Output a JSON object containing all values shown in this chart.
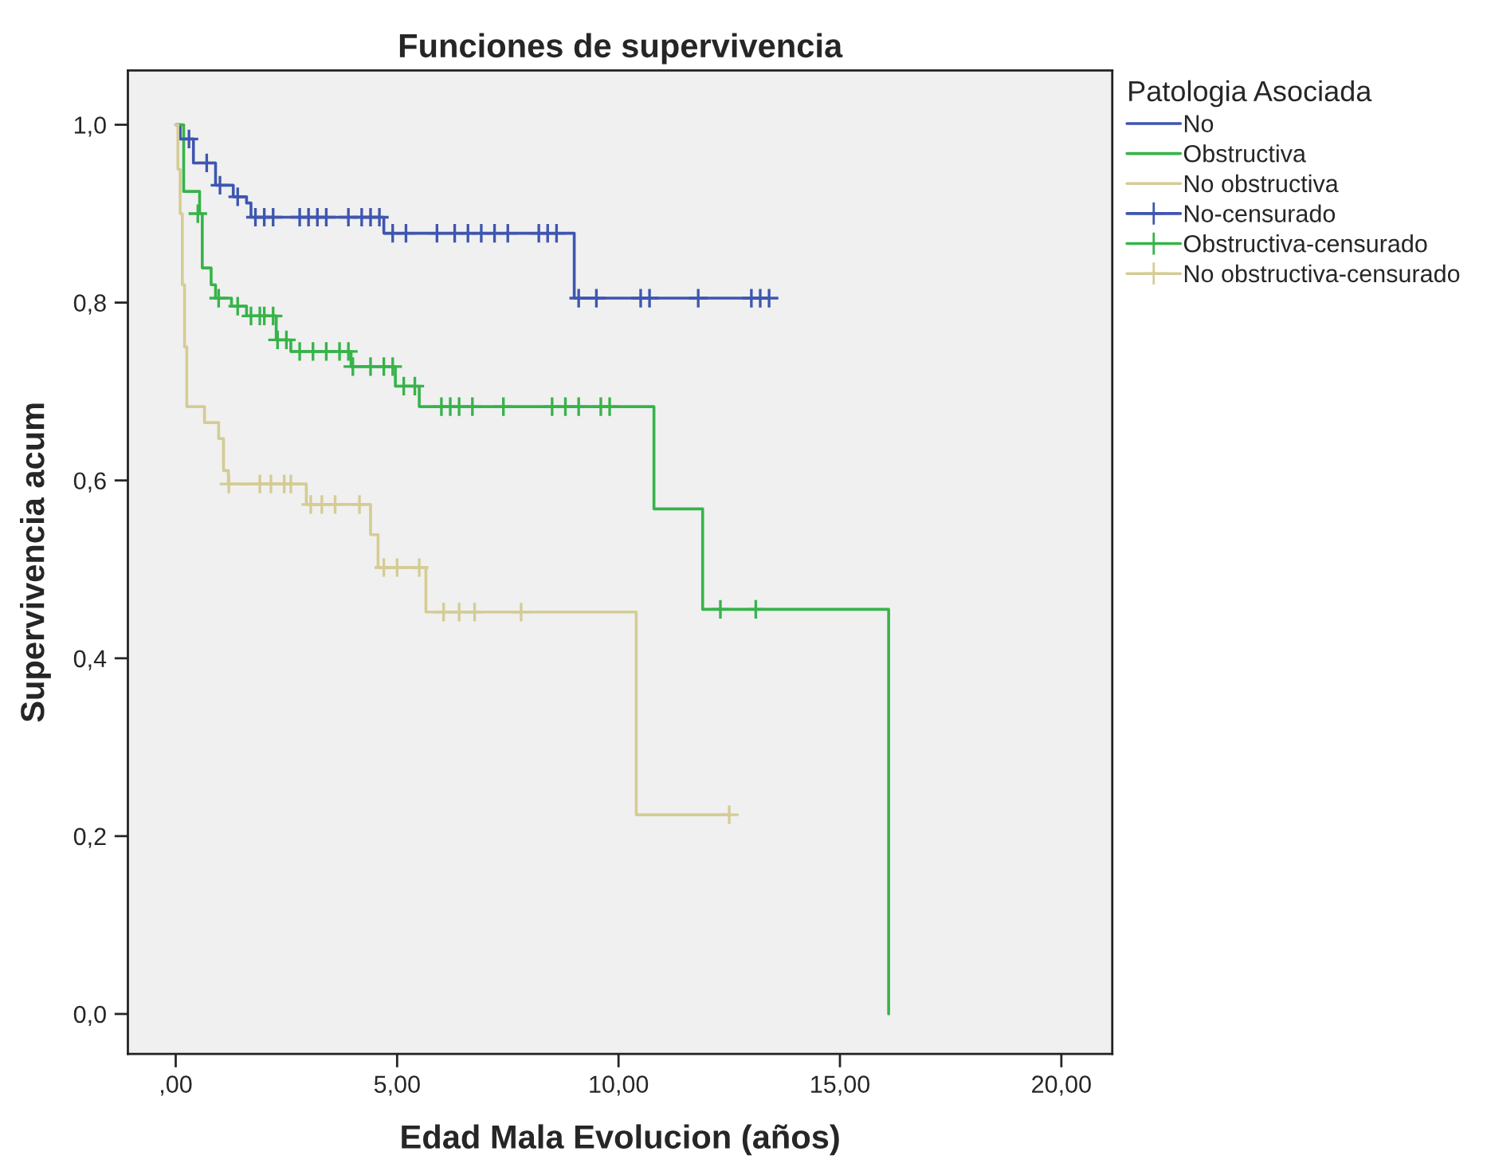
{
  "chart_data": {
    "type": "step",
    "title": "Funciones de supervivencia",
    "xlabel": "Edad Mala Evolucion (años)",
    "ylabel": "Supervivencia acum",
    "legend_title": "Patologia Asociada",
    "legend": "top right",
    "grid": false,
    "xlim": [
      -1.08,
      21.15
    ],
    "ylim": [
      -0.045,
      1.061
    ],
    "xticks": [
      {
        "value": 0,
        "label": ",00"
      },
      {
        "value": 5,
        "label": "5,00"
      },
      {
        "value": 10,
        "label": "10,00"
      },
      {
        "value": 15,
        "label": "15,00"
      },
      {
        "value": 20,
        "label": "20,00"
      }
    ],
    "yticks": [
      {
        "value": 0,
        "label": "0,0"
      },
      {
        "value": 0.2,
        "label": "0,2"
      },
      {
        "value": 0.4,
        "label": "0,4"
      },
      {
        "value": 0.6,
        "label": "0,6"
      },
      {
        "value": 0.8,
        "label": "0,8"
      },
      {
        "value": 1.0,
        "label": "1,0"
      }
    ],
    "series": [
      {
        "name": "No",
        "color": "#3e56b0",
        "x": [
          0,
          0.1,
          0.4,
          0.9,
          1.3,
          1.6,
          1.7,
          4.7,
          9.0,
          13.4
        ],
        "values": [
          1.0,
          0.984,
          0.957,
          0.932,
          0.919,
          0.912,
          0.896,
          0.878,
          0.805,
          0.805
        ]
      },
      {
        "name": "Obstructiva",
        "color": "#37b34a",
        "x": [
          0,
          0.18,
          0.54,
          0.6,
          0.8,
          0.9,
          1.26,
          1.6,
          2.27,
          2.6,
          3.96,
          4.96,
          5.5,
          10.8,
          11.9,
          16.1,
          16.1
        ],
        "values": [
          1.0,
          0.925,
          0.9,
          0.839,
          0.82,
          0.805,
          0.796,
          0.785,
          0.758,
          0.745,
          0.728,
          0.706,
          0.683,
          0.568,
          0.455,
          0.455,
          0
        ]
      },
      {
        "name": "No obstructiva",
        "color": "#d4cc94",
        "x": [
          0,
          0.05,
          0.1,
          0.15,
          0.2,
          0.25,
          0.65,
          0.97,
          1.08,
          1.19,
          2.95,
          4.4,
          4.57,
          5.65,
          10.4,
          12.5
        ],
        "values": [
          1.0,
          0.95,
          0.9,
          0.82,
          0.75,
          0.683,
          0.665,
          0.647,
          0.611,
          0.596,
          0.573,
          0.539,
          0.502,
          0.452,
          0.224,
          0.224
        ]
      },
      {
        "name": "No-censurado",
        "type": "scatter",
        "marker": "cross",
        "color": "#3e56b0",
        "x": [
          0.3,
          0.7,
          1.0,
          1.4,
          1.8,
          2.0,
          2.2,
          2.8,
          3.0,
          3.2,
          3.4,
          3.9,
          4.2,
          4.4,
          4.6,
          4.9,
          5.2,
          5.9,
          6.3,
          6.6,
          6.9,
          7.2,
          7.5,
          8.2,
          8.4,
          8.6,
          9.1,
          9.5,
          10.5,
          10.7,
          11.8,
          13.0,
          13.2,
          13.4
        ],
        "values": [
          0.984,
          0.957,
          0.932,
          0.919,
          0.896,
          0.896,
          0.896,
          0.896,
          0.896,
          0.896,
          0.896,
          0.896,
          0.896,
          0.896,
          0.896,
          0.878,
          0.878,
          0.878,
          0.878,
          0.878,
          0.878,
          0.878,
          0.878,
          0.878,
          0.878,
          0.878,
          0.805,
          0.805,
          0.805,
          0.805,
          0.805,
          0.805,
          0.805,
          0.805
        ]
      },
      {
        "name": "Obstructiva-censurado",
        "type": "scatter",
        "marker": "cross",
        "color": "#37b34a",
        "x": [
          0.5,
          0.97,
          1.4,
          1.7,
          1.9,
          2.0,
          2.2,
          2.3,
          2.5,
          2.8,
          3.1,
          3.4,
          3.7,
          3.9,
          4.0,
          4.4,
          4.7,
          4.9,
          5.15,
          5.4,
          6.0,
          6.2,
          6.4,
          6.7,
          7.4,
          8.5,
          8.8,
          9.1,
          9.6,
          9.8,
          12.3,
          13.1
        ],
        "values": [
          0.9,
          0.805,
          0.796,
          0.785,
          0.785,
          0.785,
          0.785,
          0.758,
          0.758,
          0.745,
          0.745,
          0.745,
          0.745,
          0.745,
          0.728,
          0.728,
          0.728,
          0.728,
          0.706,
          0.706,
          0.683,
          0.683,
          0.683,
          0.683,
          0.683,
          0.683,
          0.683,
          0.683,
          0.683,
          0.683,
          0.455,
          0.455
        ]
      },
      {
        "name": "No obstructiva-censurado",
        "type": "scatter",
        "marker": "cross",
        "color": "#d4cc94",
        "x": [
          1.2,
          1.9,
          2.15,
          2.45,
          2.6,
          3.05,
          3.3,
          3.6,
          4.15,
          4.7,
          5.0,
          5.5,
          6.05,
          6.4,
          6.75,
          7.8,
          12.5
        ],
        "values": [
          0.596,
          0.596,
          0.596,
          0.596,
          0.596,
          0.573,
          0.573,
          0.573,
          0.573,
          0.502,
          0.502,
          0.502,
          0.452,
          0.452,
          0.452,
          0.452,
          0.224
        ]
      }
    ]
  }
}
